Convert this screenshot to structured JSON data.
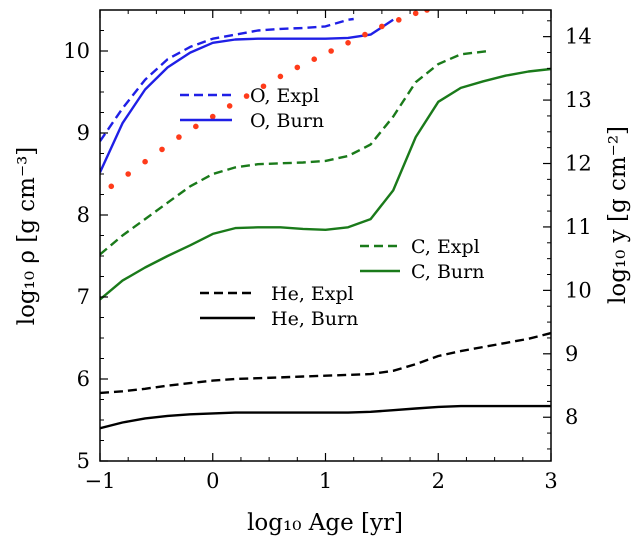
{
  "chart_data": {
    "type": "line",
    "xlabel": "log₁₀ Age [yr]",
    "ylabel": "log₁₀ ρ  [g cm⁻³]",
    "y2label": "log₁₀ y  [g cm⁻²]",
    "xlim": [
      -1,
      3
    ],
    "ylim": [
      5,
      10.5
    ],
    "y2lim": [
      7.31,
      14.42
    ],
    "x_ticks": [
      "−1",
      "0",
      "1",
      "2",
      "3"
    ],
    "y_ticks": [
      "5",
      "6",
      "7",
      "8",
      "9",
      "10"
    ],
    "y2_ticks": [
      "8",
      "9",
      "10",
      "11",
      "12",
      "13",
      "14"
    ],
    "grid": false,
    "legends": [
      {
        "placement": "upper-left",
        "entries": [
          "O,  Expl",
          "O,  Burn"
        ]
      },
      {
        "placement": "center-right",
        "entries": [
          "C,  Expl",
          "C,  Burn"
        ]
      },
      {
        "placement": "lower-center",
        "entries": [
          "He,  Expl",
          "He,  Burn"
        ]
      }
    ],
    "series": [
      {
        "name": "O,  Expl",
        "color": "#1f1fe6",
        "style": "dashed",
        "x": [
          -1,
          -0.8,
          -0.6,
          -0.4,
          -0.2,
          0,
          0.2,
          0.4,
          0.6,
          0.8,
          1.0,
          1.2,
          1.25
        ],
        "y": [
          8.9,
          9.3,
          9.65,
          9.9,
          10.05,
          10.15,
          10.2,
          10.25,
          10.27,
          10.28,
          10.3,
          10.38,
          10.39
        ]
      },
      {
        "name": "O,  Burn",
        "color": "#1f1fe6",
        "style": "solid",
        "x": [
          -1,
          -0.8,
          -0.6,
          -0.4,
          -0.2,
          0,
          0.2,
          0.4,
          0.6,
          0.8,
          1.0,
          1.2,
          1.4,
          1.6
        ],
        "y": [
          8.52,
          9.12,
          9.53,
          9.8,
          9.98,
          10.1,
          10.14,
          10.15,
          10.15,
          10.15,
          10.15,
          10.16,
          10.2,
          10.38
        ]
      },
      {
        "name": "C,  Expl",
        "color": "#1a7a1a",
        "style": "dashed",
        "x": [
          -1,
          -0.8,
          -0.6,
          -0.4,
          -0.2,
          0,
          0.2,
          0.4,
          0.6,
          0.8,
          1.0,
          1.2,
          1.4,
          1.6,
          1.8,
          2.0,
          2.2,
          2.45
        ],
        "y": [
          7.52,
          7.75,
          7.95,
          8.15,
          8.35,
          8.5,
          8.58,
          8.62,
          8.63,
          8.64,
          8.66,
          8.72,
          8.86,
          9.2,
          9.62,
          9.84,
          9.96,
          10.0
        ]
      },
      {
        "name": "C,  Burn",
        "color": "#1a7a1a",
        "style": "solid",
        "x": [
          -1,
          -0.8,
          -0.6,
          -0.4,
          -0.2,
          0,
          0.2,
          0.4,
          0.6,
          0.8,
          1.0,
          1.2,
          1.4,
          1.6,
          1.8,
          2.0,
          2.2,
          2.4,
          2.6,
          2.8,
          3.0
        ],
        "y": [
          6.97,
          7.2,
          7.36,
          7.5,
          7.63,
          7.77,
          7.84,
          7.85,
          7.85,
          7.83,
          7.82,
          7.85,
          7.95,
          8.3,
          8.95,
          9.38,
          9.55,
          9.63,
          9.7,
          9.75,
          9.78
        ]
      },
      {
        "name": "He,  Expl",
        "color": "#000000",
        "style": "dashed",
        "x": [
          -1,
          -0.8,
          -0.6,
          -0.4,
          -0.2,
          0,
          0.2,
          0.4,
          0.6,
          0.8,
          1.0,
          1.2,
          1.4,
          1.6,
          1.8,
          2.0,
          2.2,
          2.4,
          2.6,
          2.8,
          3.0
        ],
        "y": [
          5.83,
          5.85,
          5.88,
          5.92,
          5.95,
          5.98,
          6.0,
          6.01,
          6.02,
          6.03,
          6.04,
          6.05,
          6.06,
          6.1,
          6.18,
          6.28,
          6.34,
          6.39,
          6.44,
          6.49,
          6.56
        ]
      },
      {
        "name": "He,  Burn",
        "color": "#000000",
        "style": "solid",
        "x": [
          -1,
          -0.8,
          -0.6,
          -0.4,
          -0.2,
          0,
          0.2,
          0.4,
          0.6,
          0.8,
          1.0,
          1.2,
          1.4,
          1.6,
          1.8,
          2.0,
          2.2,
          2.4,
          2.6,
          2.8,
          3.0
        ],
        "y": [
          5.4,
          5.47,
          5.52,
          5.55,
          5.57,
          5.58,
          5.59,
          5.59,
          5.59,
          5.59,
          5.59,
          5.59,
          5.6,
          5.62,
          5.64,
          5.66,
          5.67,
          5.67,
          5.67,
          5.67,
          5.67
        ]
      },
      {
        "name": "",
        "color": "#ff3b1a",
        "style": "dotted",
        "x": [
          -0.9,
          -0.75,
          -0.6,
          -0.45,
          -0.3,
          -0.15,
          0,
          0.15,
          0.3,
          0.45,
          0.6,
          0.75,
          0.9,
          1.05,
          1.2,
          1.35,
          1.5,
          1.65,
          1.8,
          1.9
        ],
        "y": [
          8.35,
          8.5,
          8.65,
          8.8,
          8.95,
          9.08,
          9.2,
          9.33,
          9.45,
          9.57,
          9.69,
          9.8,
          9.9,
          10.0,
          10.1,
          10.2,
          10.3,
          10.38,
          10.46,
          10.5
        ]
      }
    ]
  }
}
